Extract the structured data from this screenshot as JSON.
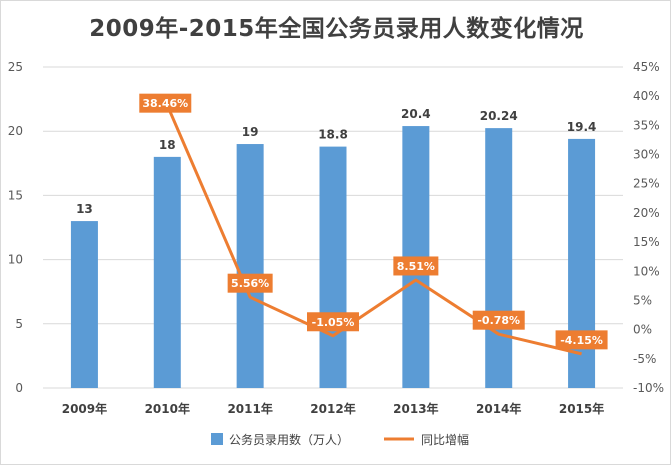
{
  "chart_data": {
    "type": "bar",
    "title": "2009年-2015年全国公务员录用人数变化情况",
    "categories": [
      "2009年",
      "2010年",
      "2011年",
      "2012年",
      "2013年",
      "2014年",
      "2015年"
    ],
    "series": [
      {
        "name": "公务员录用数（万人）",
        "type": "bar",
        "axis": "left",
        "values": [
          13,
          18,
          19,
          18.8,
          20.4,
          20.24,
          19.4
        ],
        "labels": [
          "13",
          "18",
          "19",
          "18.8",
          "20.4",
          "20.24",
          "19.4"
        ]
      },
      {
        "name": "同比增幅",
        "type": "line",
        "axis": "right",
        "values": [
          null,
          38.46,
          5.56,
          -1.05,
          8.51,
          -0.78,
          -4.15
        ],
        "labels": [
          "",
          "38.46%",
          "5.56%",
          "-1.05%",
          "8.51%",
          "-0.78%",
          "-4.15%"
        ]
      }
    ],
    "y_left": {
      "min": 0,
      "max": 25,
      "ticks": [
        "0",
        "5",
        "10",
        "15",
        "20",
        "25"
      ]
    },
    "y_right": {
      "min": -10,
      "max": 45,
      "ticks": [
        "-10%",
        "-5%",
        "0%",
        "5%",
        "10%",
        "15%",
        "20%",
        "25%",
        "30%",
        "35%",
        "40%",
        "45%"
      ]
    },
    "grid": true,
    "legend_position": "bottom",
    "colors": {
      "bar": "#5b9bd5",
      "line": "#ed7d31",
      "grid": "#d9d9d9"
    }
  }
}
